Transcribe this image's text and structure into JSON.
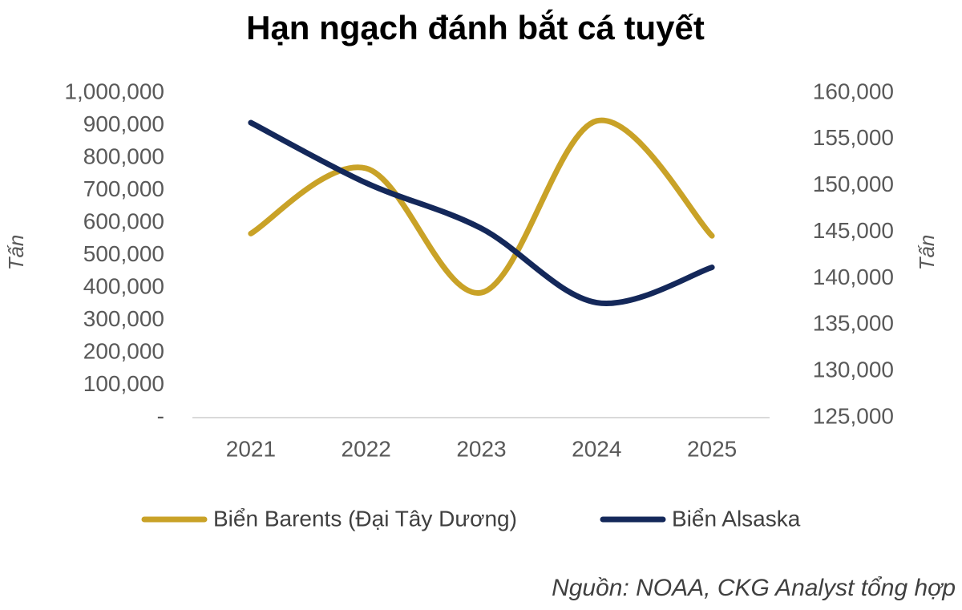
{
  "chart_data": {
    "type": "line",
    "title": "Hạn ngạch đánh bắt cá tuyết",
    "categories": [
      "2021",
      "2022",
      "2023",
      "2024",
      "2025"
    ],
    "series": [
      {
        "name": "Biển Barents (Đại Tây Dương)",
        "color": "#c9a227",
        "values": [
          567000,
          768000,
          385000,
          914000,
          560000
        ]
      },
      {
        "name": "Biển Alsaska",
        "color": "#14285a",
        "axis": "y2",
        "values": [
          156800,
          150300,
          145400,
          137400,
          141200
        ]
      }
    ],
    "ylabel": "Tấn",
    "y2label": "Tấn",
    "ylim": [
      0,
      1000000
    ],
    "yticks": [
      {
        "value": 0,
        "label": "-"
      },
      {
        "value": 100000,
        "label": "100,000"
      },
      {
        "value": 200000,
        "label": "200,000"
      },
      {
        "value": 300000,
        "label": "300,000"
      },
      {
        "value": 400000,
        "label": "400,000"
      },
      {
        "value": 500000,
        "label": "500,000"
      },
      {
        "value": 600000,
        "label": "600,000"
      },
      {
        "value": 700000,
        "label": "700,000"
      },
      {
        "value": 800000,
        "label": "800,000"
      },
      {
        "value": 900000,
        "label": "900,000"
      },
      {
        "value": 1000000,
        "label": "1,000,000"
      }
    ],
    "y2lim": [
      125000,
      160000
    ],
    "y2ticks": [
      {
        "value": 125000,
        "label": "125,000"
      },
      {
        "value": 130000,
        "label": "130,000"
      },
      {
        "value": 135000,
        "label": "135,000"
      },
      {
        "value": 140000,
        "label": "140,000"
      },
      {
        "value": 145000,
        "label": "145,000"
      },
      {
        "value": 150000,
        "label": "150,000"
      },
      {
        "value": 155000,
        "label": "155,000"
      },
      {
        "value": 160000,
        "label": "160,000"
      }
    ],
    "smooth": true,
    "legend": "bottom",
    "source": "Nguồn: NOAA, CKG Analyst tổng hợp"
  }
}
